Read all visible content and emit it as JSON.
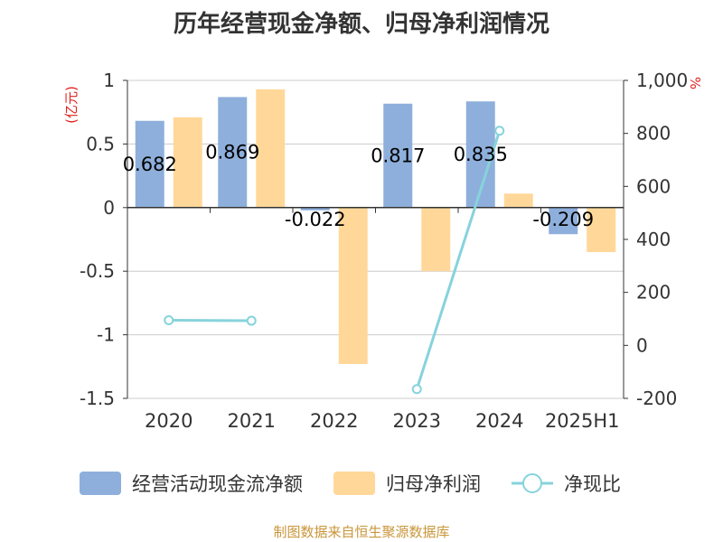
{
  "chart_data": {
    "type": "bar",
    "title": "历年经营现金净额、归母净利润情况",
    "categories": [
      "2020",
      "2021",
      "2022",
      "2023",
      "2024",
      "2025H1"
    ],
    "series": [
      {
        "name": "经营活动现金流净额",
        "type": "bar",
        "axis": "left",
        "color": "#8eafdc",
        "values": [
          0.682,
          0.869,
          -0.022,
          0.817,
          0.835,
          -0.209
        ],
        "labels": [
          "0.682",
          "0.869",
          "-0.022",
          "0.817",
          "0.835",
          "-0.209"
        ]
      },
      {
        "name": "归母净利润",
        "type": "bar",
        "axis": "left",
        "color": "#ffd899",
        "values": [
          0.71,
          0.93,
          -1.23,
          -0.5,
          0.11,
          -0.35
        ]
      },
      {
        "name": "净现比",
        "type": "line",
        "axis": "right",
        "color": "#86d3dc",
        "values": [
          95,
          93,
          null,
          -165,
          810,
          null
        ]
      }
    ],
    "y_left": {
      "unit": "(亿元)",
      "min": -1.5,
      "max": 1,
      "ticks": [
        {
          "v": 1,
          "t": "1"
        },
        {
          "v": 0.5,
          "t": "0.5"
        },
        {
          "v": 0,
          "t": "0"
        },
        {
          "v": -0.5,
          "t": "-0.5"
        },
        {
          "v": -1,
          "t": "-1"
        },
        {
          "v": -1.5,
          "t": "-1.5"
        }
      ]
    },
    "y_right": {
      "unit": "%",
      "min": -200,
      "max": 1000,
      "ticks": [
        {
          "v": 1000,
          "t": "1,000"
        },
        {
          "v": 800,
          "t": "800"
        },
        {
          "v": 600,
          "t": "600"
        },
        {
          "v": 400,
          "t": "400"
        },
        {
          "v": 200,
          "t": "200"
        },
        {
          "v": 0,
          "t": "0"
        },
        {
          "v": -200,
          "t": "-200"
        }
      ]
    },
    "grid": true,
    "legend_position": "bottom"
  },
  "source_note": "制图数据来自恒生聚源数据库",
  "colors": {
    "unit_red": "#e0211f",
    "source_gold": "#c9963a",
    "axis": "#333333",
    "grid": "#cccccc"
  }
}
